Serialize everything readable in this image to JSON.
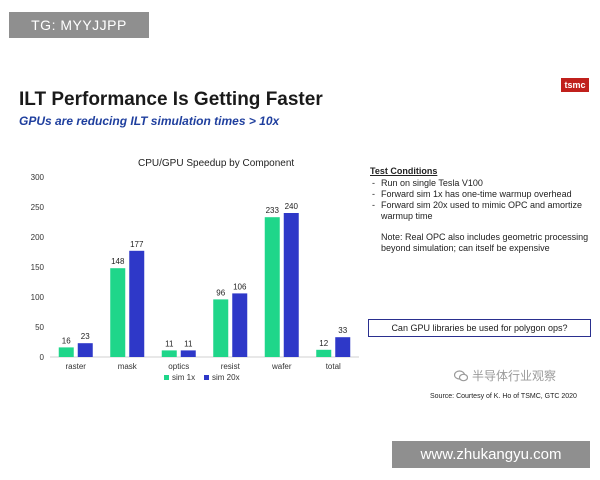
{
  "watermark_top": "TG: MYYJJPP",
  "watermark_bottom": "www.zhukangyu.com",
  "watermark_wechat": "半导体行业观察",
  "slide": {
    "title": "ILT Performance Is Getting Faster",
    "subtitle": "GPUs are reducing ILT simulation times > 10x",
    "logo": "tsmc",
    "source": "Source:  Courtesy of K. Ho of TSMC, GTC 2020"
  },
  "conditions": {
    "heading": "Test Conditions",
    "items": [
      "Run on single Tesla V100",
      "Forward sim 1x has one-time warmup overhead",
      "Forward sim 20x used to mimic OPC and amortize warmup time"
    ],
    "note": "Note: Real OPC also includes geometric processing  beyond simulation; can itself be expensive",
    "question": "Can GPU libraries be used for polygon ops?"
  },
  "colors": {
    "sim1x": "#1fd68a",
    "sim20x": "#2e38c8",
    "title_blue": "#1f3f9e",
    "logo_red": "#c0201c"
  },
  "chart_data": {
    "type": "bar",
    "title": "CPU/GPU Speedup by Component",
    "categories": [
      "raster",
      "mask",
      "optics",
      "resist",
      "wafer",
      "total"
    ],
    "series": [
      {
        "name": "sim 1x",
        "values": [
          16,
          148,
          11,
          96,
          233,
          12
        ]
      },
      {
        "name": "sim 20x",
        "values": [
          23,
          177,
          11,
          106,
          240,
          33
        ]
      }
    ],
    "yticks": [
      "0",
      "50",
      "100",
      "150",
      "200",
      "250",
      "300"
    ],
    "ylim": [
      0,
      300
    ],
    "grid": false,
    "legend": "bottom"
  }
}
